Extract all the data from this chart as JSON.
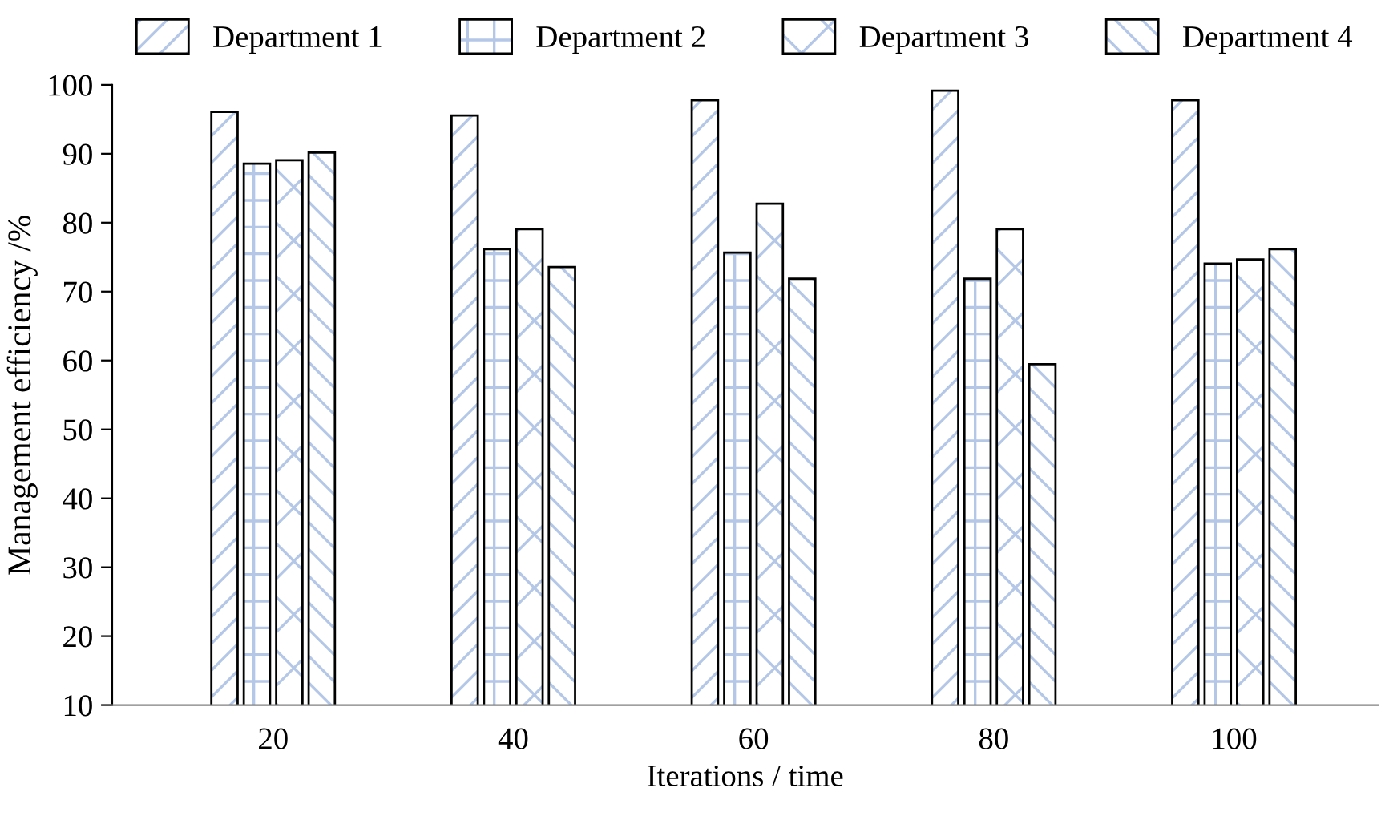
{
  "chart_data": {
    "type": "bar",
    "xlabel": "Iterations / time",
    "ylabel": "Management efficiency /%",
    "categories": [
      "20",
      "40",
      "60",
      "80",
      "100"
    ],
    "series": [
      {
        "name": "Department 1",
        "color": "#b4c7e7",
        "values": [
          95.9,
          95.4,
          97.6,
          99.0,
          97.6
        ]
      },
      {
        "name": "Department 2",
        "color": "#b4c7e7",
        "values": [
          88.4,
          76.0,
          75.5,
          71.7,
          73.9
        ]
      },
      {
        "name": "Department 3",
        "color": "#b4c7e7",
        "values": [
          88.9,
          78.9,
          82.6,
          78.9,
          74.5
        ]
      },
      {
        "name": "Department 4",
        "color": "#b4c7e7",
        "values": [
          90.0,
          73.4,
          71.7,
          59.3,
          76.0
        ]
      }
    ],
    "ylim": [
      10,
      100
    ],
    "yticks": [
      10,
      20,
      30,
      40,
      50,
      60,
      70,
      80,
      90,
      100
    ],
    "grid": false,
    "legend": "top"
  }
}
